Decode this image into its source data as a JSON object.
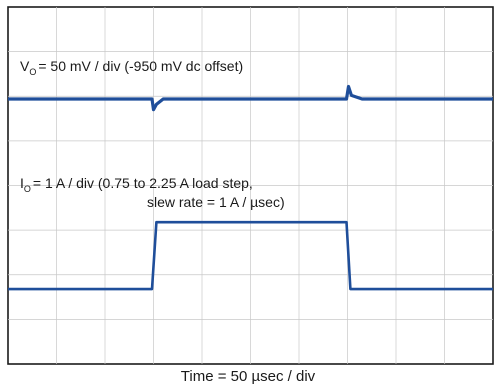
{
  "chart_data": {
    "type": "line",
    "title": "",
    "xlabel": "Time = 50 µsec / div",
    "ylabel": "",
    "grid": true,
    "divisions": {
      "x": 10,
      "y": 8
    },
    "annotations": {
      "vo": {
        "symbol": "V",
        "subscript": "O",
        "text": "= 50 mV / div (-950 mV dc offset)"
      },
      "io": {
        "symbol": "I",
        "subscript": "O",
        "line1": "= 1 A / div (0.75 to 2.25 A load step,",
        "line2": "slew rate = 1 A / µsec)"
      }
    },
    "series": [
      {
        "color": "#1f4e9a",
        "unit": "A",
        "scale_per_div": 1,
        "x_div": [
          0,
          2.97,
          3.06,
          6.98,
          7.06,
          10
        ],
        "values": [
          0.75,
          0.75,
          2.25,
          2.25,
          0.75,
          0.75
        ]
      },
      {
        "color": "#1f4e9a",
        "unit": "mV",
        "scale_per_div": 50,
        "x_div": [
          0,
          2.97,
          3.0,
          3.06,
          3.2,
          6.98,
          7.02,
          7.08,
          7.3,
          10
        ],
        "values": [
          0,
          0,
          -12,
          -6,
          0,
          0,
          14,
          4,
          0,
          0
        ]
      }
    ]
  }
}
